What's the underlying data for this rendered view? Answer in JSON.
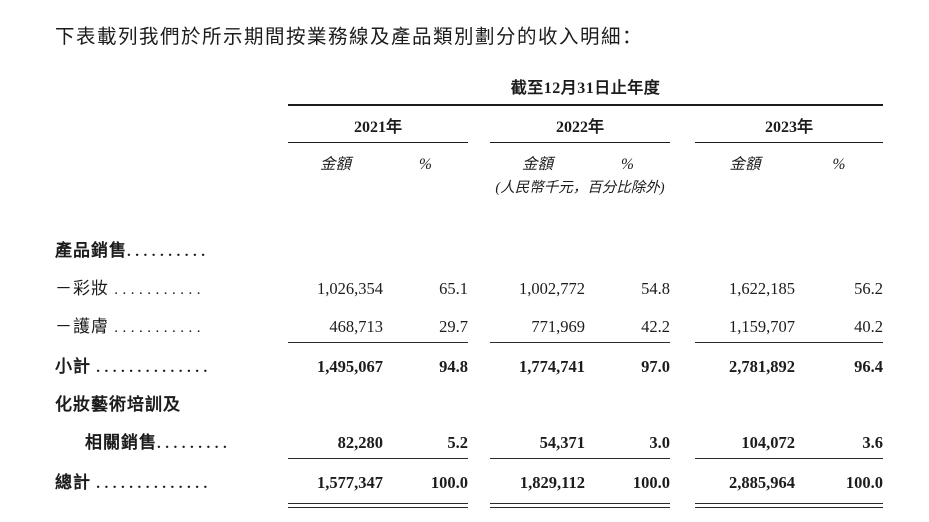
{
  "title": "下表載列我們於所示期間按業務線及產品類別劃分的收入明細：",
  "table": {
    "period_header": "截至12月31日止年度",
    "years": [
      "2021年",
      "2022年",
      "2023年"
    ],
    "col_headers": {
      "amount": "金額",
      "percent": "%"
    },
    "unit_note": "(人民幣千元，百分比除外)",
    "rows": [
      {
        "label": "產品銷售",
        "dots": "..........",
        "a21": "",
        "p21": "",
        "a22": "",
        "p22": "",
        "a23": "",
        "p23": ""
      },
      {
        "label": "－彩妝",
        "dots": "...........",
        "a21": "1,026,354",
        "p21": "65.1",
        "a22": "1,002,772",
        "p22": "54.8",
        "a23": "1,622,185",
        "p23": "56.2"
      },
      {
        "label": "－護膚",
        "dots": "...........",
        "a21": "468,713",
        "p21": "29.7",
        "a22": "771,969",
        "p22": "42.2",
        "a23": "1,159,707",
        "p23": "40.2"
      },
      {
        "label": "小計",
        "dots": "..............",
        "a21": "1,495,067",
        "p21": "94.8",
        "a22": "1,774,741",
        "p22": "97.0",
        "a23": "2,781,892",
        "p23": "96.4"
      },
      {
        "label": "化妝藝術培訓及",
        "dots": "",
        "a21": "",
        "p21": "",
        "a22": "",
        "p22": "",
        "a23": "",
        "p23": ""
      },
      {
        "label": "相關銷售",
        "dots": ".........",
        "a21": "82,280",
        "p21": "5.2",
        "a22": "54,371",
        "p22": "3.0",
        "a23": "104,072",
        "p23": "3.6"
      },
      {
        "label": "總計",
        "dots": "..............",
        "a21": "1,577,347",
        "p21": "100.0",
        "a22": "1,829,112",
        "p22": "100.0",
        "a23": "2,885,964",
        "p23": "100.0"
      }
    ]
  }
}
